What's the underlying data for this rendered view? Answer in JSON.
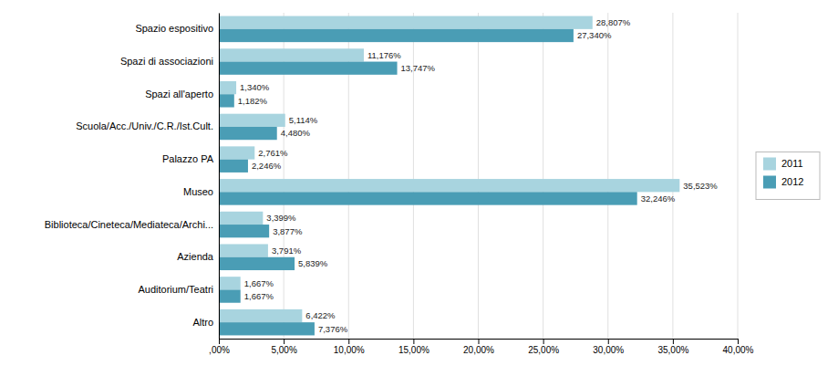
{
  "chart_data": {
    "type": "bar",
    "orientation": "horizontal",
    "categories": [
      "Spazio espositivo",
      "Spazi di associazioni",
      "Spazi all'aperto",
      "Scuola/Acc./Univ./C.R./Ist.Cult.",
      "Palazzo PA",
      "Museo",
      "Biblioteca/Cineteca/Mediateca/Archi...",
      "Azienda",
      "Auditorium/Teatri",
      "Altro"
    ],
    "series": [
      {
        "name": "2011",
        "color": "#a8d4df",
        "values": [
          28.807,
          11.176,
          1.34,
          5.114,
          2.761,
          35.523,
          3.399,
          3.791,
          1.667,
          6.422
        ],
        "value_labels": [
          "28,807%",
          "11,176%",
          "1,340%",
          "5,114%",
          "2,761%",
          "35,523%",
          "3,399%",
          "3,791%",
          "1,667%",
          "6,422%"
        ]
      },
      {
        "name": "2012",
        "color": "#4a9db5",
        "values": [
          27.34,
          13.747,
          1.182,
          4.48,
          2.246,
          32.246,
          3.877,
          5.839,
          1.667,
          7.376
        ],
        "value_labels": [
          "27,340%",
          "13,747%",
          "1,182%",
          "4,480%",
          "2,246%",
          "32,246%",
          "3,877%",
          "5,839%",
          "1,667%",
          "7,376%"
        ]
      }
    ],
    "xlim": [
      0,
      40
    ],
    "xticks": [
      {
        "value": 0,
        "label": ",00%"
      },
      {
        "value": 5,
        "label": "5,00%"
      },
      {
        "value": 10,
        "label": "10,00%"
      },
      {
        "value": 15,
        "label": "15,00%"
      },
      {
        "value": 20,
        "label": "20,00%"
      },
      {
        "value": 25,
        "label": "25,00%"
      },
      {
        "value": 30,
        "label": "30,00%"
      },
      {
        "value": 35,
        "label": "35,00%"
      },
      {
        "value": 40,
        "label": "40,00%"
      }
    ],
    "grid": true,
    "legend": "right",
    "data_labels": true
  }
}
